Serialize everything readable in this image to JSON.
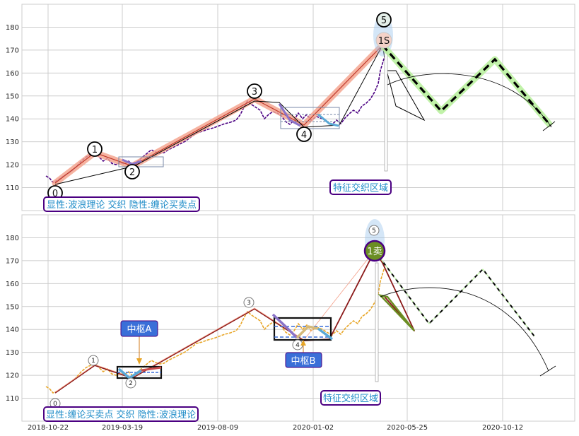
{
  "chart_data": [
    {
      "type": "line",
      "panel": "top",
      "title": "",
      "xlabel": "",
      "ylabel": "",
      "ylim": [
        100,
        190
      ],
      "yticks": [
        110,
        120,
        130,
        140,
        150,
        160,
        170,
        180
      ],
      "grid": true,
      "badge": "显性:波浪理论 交织 隐性:缠论买卖点",
      "zone_label": "特征交织区域",
      "wave_labels": [
        "0",
        "1",
        "2",
        "3",
        "4",
        "5",
        "1S"
      ],
      "colors": {
        "price": "#4b0082",
        "wave": "#f4a08a",
        "zigzag": "#000000",
        "forecast": "#b6f09a",
        "highlight": "#1f8cc8"
      }
    },
    {
      "type": "line",
      "panel": "bottom",
      "title": "",
      "xlabel": "",
      "ylabel": "",
      "ylim": [
        100,
        190
      ],
      "yticks": [
        110,
        120,
        130,
        140,
        150,
        160,
        170,
        180
      ],
      "xticks": [
        "2018-10-22",
        "2019-03-19",
        "2019-08-09",
        "2020-01-02",
        "2020-05-25",
        "2020-10-12"
      ],
      "grid": true,
      "badge": "显性:缠论买卖点 交织 隐性:波浪理论",
      "zone_label": "特征交织区域",
      "pivot_labels": [
        "中枢A",
        "中枢B"
      ],
      "sell_label": "1卖",
      "wave_labels": [
        "0",
        "1",
        "2",
        "3",
        "4",
        "5"
      ],
      "colors": {
        "price": "#e8a628",
        "stroke": "#8b1a1a",
        "pivot": "#3a6fd8",
        "sell": "#6b8e23"
      }
    }
  ]
}
